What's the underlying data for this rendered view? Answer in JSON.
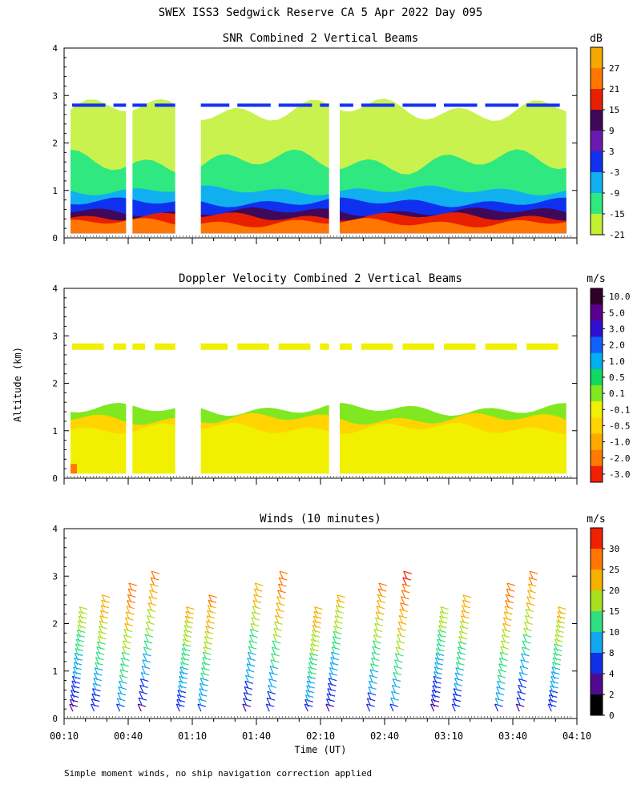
{
  "figure": {
    "title": "SWEX ISS3 Sedgwick Reserve CA   5 Apr 2022 Day 095",
    "ylabel": "Altitude (km)",
    "xlabel": "Time (UT)",
    "footnote": "Simple moment winds, no ship navigation correction applied"
  },
  "chart_data": [
    {
      "type": "heatmap",
      "title": "SNR Combined 2 Vertical Beams",
      "xlim": [
        "00:10",
        "04:10"
      ],
      "ylim": [
        0,
        4
      ],
      "y_ticks": [
        "0",
        "1",
        "2",
        "3",
        "4"
      ],
      "colorbar": {
        "unit": "dB",
        "tick_labels": [
          "27",
          "21",
          "15",
          "9",
          "3",
          "-3",
          "-9",
          "-15",
          "-21"
        ],
        "colors": [
          "#f5a800",
          "#ff7700",
          "#e82000",
          "#400858",
          "#6a1ab0",
          "#1030f0",
          "#10b0f0",
          "#30e880",
          "#c0f030"
        ]
      },
      "layers": [
        {
          "label": "-21",
          "color": "#c0f030"
        },
        {
          "label": "-15",
          "color": "#30e880"
        },
        {
          "label": "-9",
          "color": "#10b0f0"
        },
        {
          "label": "-3",
          "color": "#1030f0"
        },
        {
          "label": "9",
          "color": "#400858"
        },
        {
          "label": "15",
          "color": "#e82000"
        },
        {
          "label": "21",
          "color": "#ff7700"
        }
      ],
      "gaps_time": [
        "00:39",
        "00:42",
        "01:02",
        "01:14",
        "02:14",
        "02:19"
      ]
    },
    {
      "type": "heatmap",
      "title": "Doppler Velocity Combined 2 Vertical Beams",
      "xlim": [
        "00:10",
        "04:10"
      ],
      "ylim": [
        0,
        4
      ],
      "y_ticks": [
        "0",
        "1",
        "2",
        "3",
        "4"
      ],
      "colorbar": {
        "unit": "m/s",
        "tick_labels": [
          "10.0",
          "5.0",
          "3.0",
          "2.0",
          "1.0",
          "0.5",
          "0.1",
          "-0.1",
          "-0.5",
          "-1.0",
          "-2.0",
          "-3.0"
        ],
        "colors": [
          "#300028",
          "#5a0090",
          "#3010d0",
          "#1060ff",
          "#00b0f0",
          "#10d860",
          "#80e820",
          "#f0f000",
          "#ffd400",
          "#ffaa00",
          "#ff7a00",
          "#f02000"
        ]
      },
      "dominant_value_label": "-0.1"
    },
    {
      "type": "barbs",
      "title": "Winds (10 minutes)",
      "xlim": [
        "00:10",
        "04:10"
      ],
      "ylim": [
        0,
        4
      ],
      "y_ticks": [
        "0",
        "1",
        "2",
        "3",
        "4"
      ],
      "x_ticks": [
        "00:10",
        "00:40",
        "01:10",
        "01:40",
        "02:10",
        "02:40",
        "03:10",
        "03:40",
        "04:10"
      ],
      "colorbar": {
        "unit": "m/s",
        "tick_labels": [
          "30",
          "25",
          "20",
          "15",
          "10",
          "8",
          "4",
          "2",
          "0"
        ],
        "colors": [
          "#f02000",
          "#ff7700",
          "#f5b000",
          "#a8e020",
          "#30e080",
          "#10a8f0",
          "#1030e8",
          "#500a90",
          "#000000"
        ]
      },
      "profile_times": [
        "00:16",
        "00:26",
        "00:38",
        "00:48",
        "01:06",
        "01:16",
        "01:37",
        "01:48",
        "02:06",
        "02:16",
        "02:35",
        "02:46",
        "03:05",
        "03:15",
        "03:35",
        "03:45",
        "04:00"
      ]
    }
  ]
}
